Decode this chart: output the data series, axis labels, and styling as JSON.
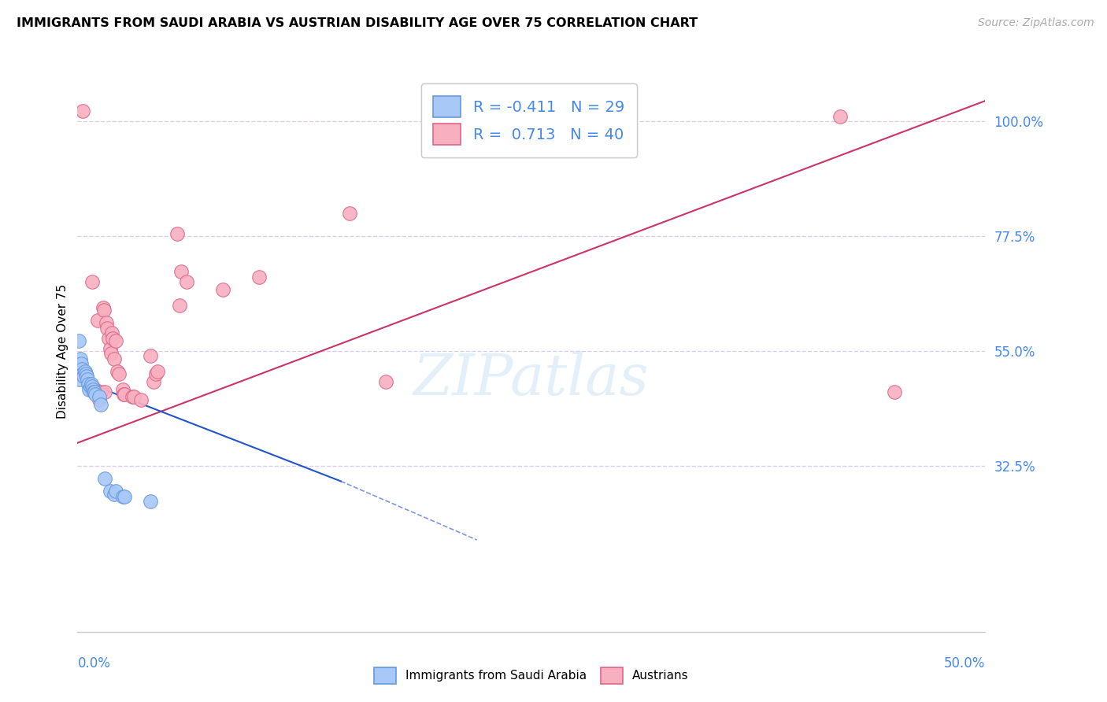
{
  "title": "IMMIGRANTS FROM SAUDI ARABIA VS AUSTRIAN DISABILITY AGE OVER 75 CORRELATION CHART",
  "source": "Source: ZipAtlas.com",
  "ylabel": "Disability Age Over 75",
  "xmin": 0.0,
  "xmax": 50.0,
  "ymin": 0.0,
  "ymax": 110.0,
  "ytick_vals": [
    32.5,
    55.0,
    77.5,
    100.0
  ],
  "ytick_labels": [
    "32.5%",
    "55.0%",
    "77.5%",
    "100.0%"
  ],
  "legend_line1": "R = -0.411   N = 29",
  "legend_line2": "R =  0.713   N = 40",
  "saudi_color": "#a8c8f8",
  "saudi_edge": "#6699dd",
  "austrian_color": "#f8b0c0",
  "austrian_edge": "#dd6688",
  "saudi_line_color": "#2255cc",
  "austrian_line_color": "#cc3366",
  "background_color": "#ffffff",
  "grid_color": "#ddccee",
  "saudi_points": [
    [
      0.1,
      49.5
    ],
    [
      0.15,
      53.5
    ],
    [
      0.2,
      52.5
    ],
    [
      0.25,
      51.5
    ],
    [
      0.3,
      50.5
    ],
    [
      0.35,
      50.0
    ],
    [
      0.4,
      51.0
    ],
    [
      0.45,
      50.5
    ],
    [
      0.5,
      50.0
    ],
    [
      0.55,
      49.5
    ],
    [
      0.6,
      48.5
    ],
    [
      0.65,
      47.5
    ],
    [
      0.7,
      48.0
    ],
    [
      0.75,
      48.5
    ],
    [
      0.8,
      48.0
    ],
    [
      0.85,
      47.5
    ],
    [
      0.9,
      47.0
    ],
    [
      0.95,
      47.0
    ],
    [
      1.0,
      46.5
    ],
    [
      1.2,
      46.0
    ],
    [
      1.3,
      44.5
    ],
    [
      1.5,
      30.0
    ],
    [
      1.8,
      27.5
    ],
    [
      2.0,
      27.0
    ],
    [
      2.1,
      27.5
    ],
    [
      2.5,
      26.5
    ],
    [
      2.6,
      26.5
    ],
    [
      4.0,
      25.5
    ],
    [
      0.08,
      57.0
    ]
  ],
  "austrian_points": [
    [
      0.3,
      102.0
    ],
    [
      0.8,
      68.5
    ],
    [
      1.0,
      47.5
    ],
    [
      1.1,
      61.0
    ],
    [
      1.2,
      45.5
    ],
    [
      1.3,
      47.0
    ],
    [
      1.4,
      63.5
    ],
    [
      1.45,
      63.0
    ],
    [
      1.5,
      47.0
    ],
    [
      1.6,
      60.5
    ],
    [
      1.65,
      59.5
    ],
    [
      1.7,
      57.5
    ],
    [
      1.8,
      55.5
    ],
    [
      1.85,
      54.5
    ],
    [
      1.9,
      58.5
    ],
    [
      1.95,
      57.5
    ],
    [
      2.0,
      53.5
    ],
    [
      2.1,
      57.0
    ],
    [
      2.2,
      51.0
    ],
    [
      2.3,
      50.5
    ],
    [
      2.5,
      47.5
    ],
    [
      2.55,
      46.5
    ],
    [
      2.6,
      46.5
    ],
    [
      3.0,
      46.0
    ],
    [
      3.1,
      46.0
    ],
    [
      3.5,
      45.5
    ],
    [
      4.0,
      54.0
    ],
    [
      4.2,
      49.0
    ],
    [
      4.3,
      50.5
    ],
    [
      4.4,
      51.0
    ],
    [
      5.5,
      78.0
    ],
    [
      5.6,
      64.0
    ],
    [
      5.7,
      70.5
    ],
    [
      6.0,
      68.5
    ],
    [
      8.0,
      67.0
    ],
    [
      10.0,
      69.5
    ],
    [
      15.0,
      82.0
    ],
    [
      17.0,
      49.0
    ],
    [
      42.0,
      101.0
    ],
    [
      45.0,
      47.0
    ]
  ],
  "saudi_line": [
    [
      0.0,
      49.5
    ],
    [
      14.5,
      29.5
    ]
  ],
  "saudi_line_dash": [
    [
      14.5,
      29.5
    ],
    [
      22.0,
      18.0
    ]
  ],
  "austrian_line": [
    [
      0.0,
      37.0
    ],
    [
      50.0,
      104.0
    ]
  ],
  "watermark": "ZIPatlas"
}
